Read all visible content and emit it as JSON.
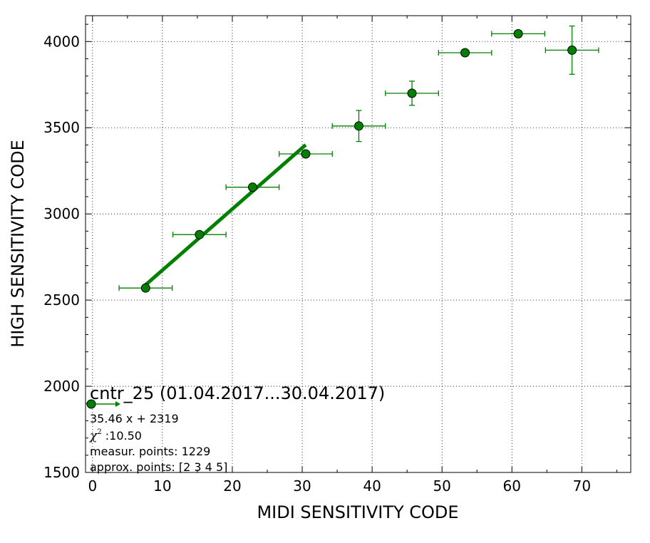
{
  "chart_data": {
    "type": "scatter",
    "xlabel": "MIDI SENSITIVITY CODE",
    "ylabel": "HIGH SENSITIVITY CODE",
    "xlim": [
      -1,
      77
    ],
    "ylim": [
      1500,
      4150
    ],
    "x_ticks": [
      0,
      10,
      20,
      30,
      40,
      50,
      60,
      70
    ],
    "y_ticks": [
      1500,
      2000,
      2500,
      3000,
      3500,
      4000
    ],
    "grid": true,
    "grid_style": "dotted",
    "colors": {
      "marker": "#007f00",
      "errorbar": "#008000",
      "fit": "#008000"
    },
    "series": [
      {
        "points": [
          {
            "x": 7.6,
            "y": 2570,
            "xerr": 3.8,
            "yerr": 0
          },
          {
            "x": 15.3,
            "y": 2880,
            "xerr": 3.8,
            "yerr": 0
          },
          {
            "x": 22.9,
            "y": 3155,
            "xerr": 3.8,
            "yerr": 0
          },
          {
            "x": 30.5,
            "y": 3348,
            "xerr": 3.8,
            "yerr": 0
          },
          {
            "x": 38.1,
            "y": 3510,
            "xerr": 3.8,
            "yerr": 90
          },
          {
            "x": 45.7,
            "y": 3700,
            "xerr": 3.8,
            "yerr": 70
          },
          {
            "x": 53.3,
            "y": 3935,
            "xerr": 3.8,
            "yerr": 0
          },
          {
            "x": 60.9,
            "y": 4045,
            "xerr": 3.8,
            "yerr": 0
          },
          {
            "x": 68.6,
            "y": 3950,
            "xerr": 3.8,
            "yerr": 140
          }
        ]
      }
    ],
    "fit_line": {
      "slope": 35.46,
      "intercept": 2319,
      "x_start": 7.6,
      "x_end": 30.5
    },
    "annotation": {
      "title": "cntr_25 (01.04.2017...30.04.2017)",
      "equation": "35.46 x + 2319",
      "chi_symbol": "χ",
      "chi_sup": "2",
      "chi_value": " :10.50",
      "measur": "measur. points: 1229",
      "approx": "approx. points: [2 3 4 5]"
    }
  }
}
